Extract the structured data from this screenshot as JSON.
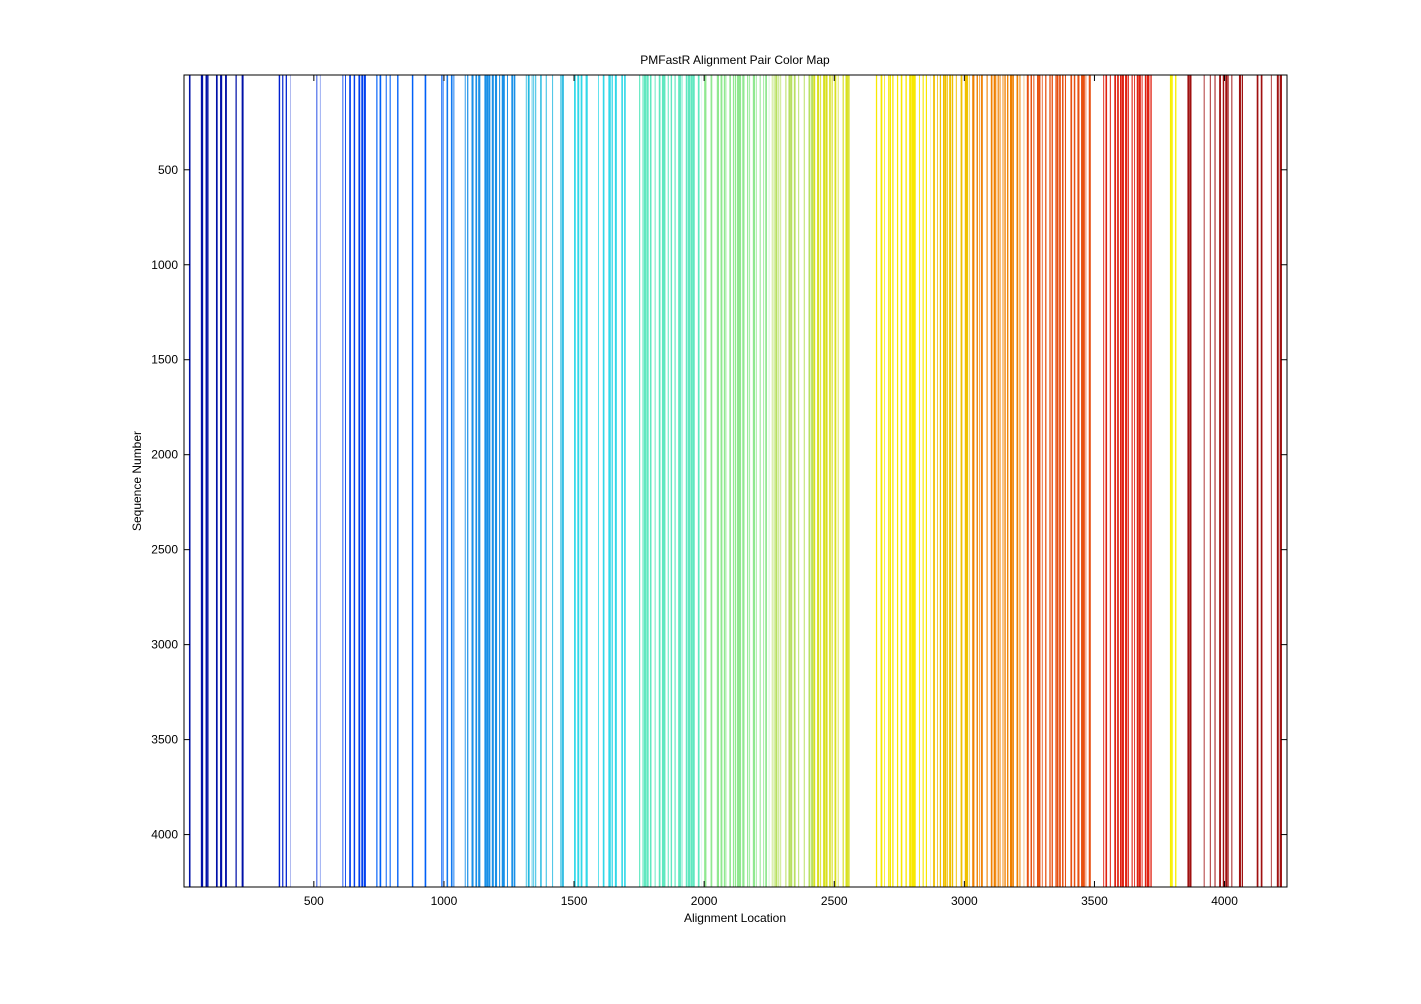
{
  "chart_data": {
    "type": "heatmap",
    "title": "PMFastR Alignment Pair Color Map",
    "xlabel": "Alignment Location",
    "ylabel": "Sequence Number",
    "xlim": [
      1,
      4240
    ],
    "ylim": [
      1,
      4276
    ],
    "y_direction": "reversed",
    "x_ticks": [
      500,
      1000,
      1500,
      2000,
      2500,
      3000,
      3500,
      4000
    ],
    "y_ticks": [
      500,
      1000,
      1500,
      2000,
      2500,
      3000,
      3500,
      4000
    ],
    "colormap": "jet",
    "grid": false,
    "legend": "none",
    "column_groups": [
      {
        "start": 20,
        "end": 240,
        "color": "#0010a8",
        "coverage": 0.55
      },
      {
        "start": 365,
        "end": 410,
        "color": "#0020d0",
        "coverage": 0.9
      },
      {
        "start": 510,
        "end": 525,
        "color": "#0030e0",
        "coverage": 0.7
      },
      {
        "start": 610,
        "end": 700,
        "color": "#0040f0",
        "coverage": 0.85
      },
      {
        "start": 740,
        "end": 1000,
        "color": "#0060f8",
        "coverage": 0.45
      },
      {
        "start": 1010,
        "end": 1040,
        "color": "#1078f0",
        "coverage": 0.95
      },
      {
        "start": 1080,
        "end": 1280,
        "color": "#1890e8",
        "coverage": 0.85
      },
      {
        "start": 1300,
        "end": 1480,
        "color": "#20b8e0",
        "coverage": 0.7
      },
      {
        "start": 1500,
        "end": 1700,
        "color": "#30d8e8",
        "coverage": 0.85
      },
      {
        "start": 1750,
        "end": 1990,
        "color": "#60e8c0",
        "coverage": 0.95
      },
      {
        "start": 2000,
        "end": 2250,
        "color": "#90e890",
        "coverage": 0.95
      },
      {
        "start": 2260,
        "end": 2420,
        "color": "#b8e060",
        "coverage": 0.95
      },
      {
        "start": 2420,
        "end": 2560,
        "color": "#d8e020",
        "coverage": 0.95
      },
      {
        "start": 2660,
        "end": 2870,
        "color": "#f8e800",
        "coverage": 0.95
      },
      {
        "start": 2880,
        "end": 3020,
        "color": "#f0c000",
        "coverage": 0.85
      },
      {
        "start": 3020,
        "end": 3230,
        "color": "#f08000",
        "coverage": 0.9
      },
      {
        "start": 3240,
        "end": 3500,
        "color": "#e85010",
        "coverage": 0.9
      },
      {
        "start": 3520,
        "end": 3720,
        "color": "#e02010",
        "coverage": 0.95
      },
      {
        "start": 3790,
        "end": 3815,
        "color": "#f8f000",
        "coverage": 0.95
      },
      {
        "start": 3840,
        "end": 4230,
        "color": "#a01010",
        "coverage": 0.55
      }
    ]
  }
}
